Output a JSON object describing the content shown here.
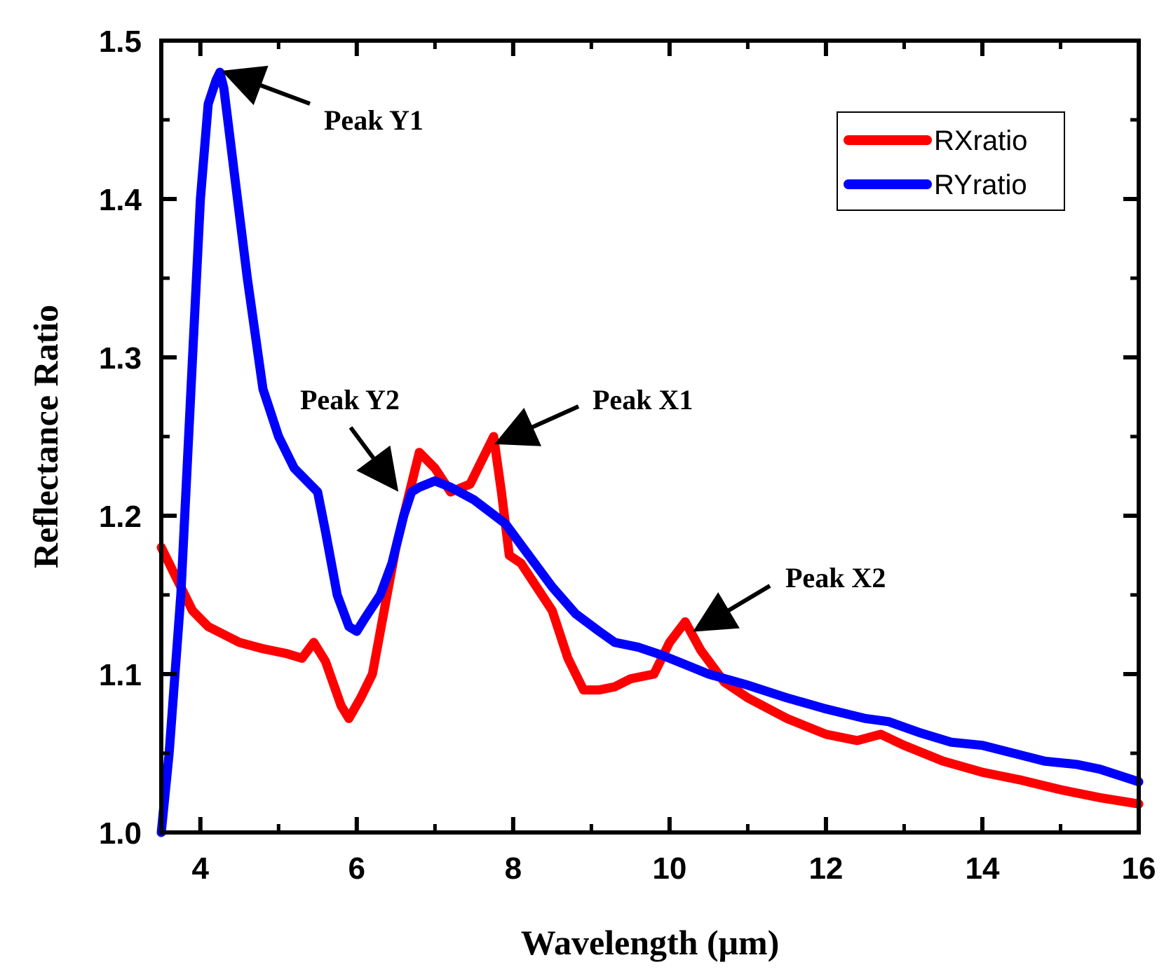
{
  "chart_data": {
    "type": "line",
    "title": "",
    "xlabel": "Wavelength (μm)",
    "ylabel": "Reflectance Ratio",
    "xlim": [
      3.5,
      16
    ],
    "ylim": [
      1.0,
      1.5
    ],
    "xticks": [
      4,
      6,
      8,
      10,
      12,
      14,
      16
    ],
    "xtick_labels": [
      "4",
      "6",
      "8",
      "10",
      "12",
      "14",
      "16"
    ],
    "yticks": [
      1.0,
      1.1,
      1.2,
      1.3,
      1.4,
      1.5
    ],
    "ytick_labels": [
      "1.0",
      "1.1",
      "1.2",
      "1.3",
      "1.4",
      "1.5"
    ],
    "grid": false,
    "legend_position": "top-right",
    "series": [
      {
        "name": "RXratio",
        "color": "#ff0000",
        "x": [
          3.5,
          3.7,
          3.9,
          4.1,
          4.3,
          4.5,
          4.8,
          5.1,
          5.3,
          5.45,
          5.6,
          5.8,
          5.9,
          6.05,
          6.2,
          6.35,
          6.5,
          6.65,
          6.8,
          6.9,
          7.0,
          7.2,
          7.45,
          7.6,
          7.75,
          7.85,
          7.95,
          8.1,
          8.3,
          8.5,
          8.7,
          8.9,
          9.1,
          9.3,
          9.5,
          9.8,
          10.0,
          10.2,
          10.4,
          10.7,
          11.0,
          11.5,
          12.0,
          12.4,
          12.7,
          13.0,
          13.5,
          14.0,
          14.5,
          15.0,
          15.5,
          16.0
        ],
        "values": [
          1.18,
          1.16,
          1.14,
          1.13,
          1.125,
          1.12,
          1.116,
          1.113,
          1.11,
          1.12,
          1.108,
          1.08,
          1.072,
          1.085,
          1.1,
          1.14,
          1.18,
          1.21,
          1.24,
          1.235,
          1.23,
          1.215,
          1.22,
          1.235,
          1.25,
          1.215,
          1.175,
          1.17,
          1.155,
          1.14,
          1.11,
          1.09,
          1.09,
          1.092,
          1.097,
          1.1,
          1.12,
          1.133,
          1.115,
          1.095,
          1.085,
          1.072,
          1.062,
          1.058,
          1.062,
          1.055,
          1.045,
          1.038,
          1.033,
          1.027,
          1.022,
          1.018
        ]
      },
      {
        "name": "RYratio",
        "color": "#0000ff",
        "x": [
          3.5,
          3.6,
          3.75,
          3.9,
          4.0,
          4.1,
          4.2,
          4.25,
          4.3,
          4.35,
          4.45,
          4.6,
          4.8,
          5.0,
          5.2,
          5.4,
          5.5,
          5.6,
          5.75,
          5.9,
          6.0,
          6.1,
          6.3,
          6.45,
          6.6,
          6.7,
          6.8,
          6.9,
          7.0,
          7.2,
          7.5,
          7.9,
          8.2,
          8.5,
          8.8,
          9.1,
          9.3,
          9.6,
          9.9,
          10.2,
          10.5,
          11.0,
          11.5,
          12.0,
          12.5,
          12.8,
          13.2,
          13.6,
          14.0,
          14.4,
          14.8,
          15.2,
          15.5,
          16.0
        ],
        "values": [
          1.0,
          1.05,
          1.15,
          1.3,
          1.4,
          1.46,
          1.475,
          1.48,
          1.47,
          1.45,
          1.41,
          1.35,
          1.28,
          1.25,
          1.23,
          1.22,
          1.215,
          1.19,
          1.15,
          1.13,
          1.127,
          1.135,
          1.15,
          1.17,
          1.2,
          1.215,
          1.218,
          1.22,
          1.222,
          1.218,
          1.21,
          1.195,
          1.175,
          1.155,
          1.138,
          1.127,
          1.12,
          1.117,
          1.112,
          1.106,
          1.1,
          1.093,
          1.085,
          1.078,
          1.072,
          1.07,
          1.063,
          1.057,
          1.055,
          1.05,
          1.045,
          1.043,
          1.04,
          1.032
        ]
      }
    ],
    "annotations": [
      {
        "text": "Peak Y1",
        "x": 4.3,
        "y": 1.48
      },
      {
        "text": "Peak Y2",
        "x": 6.45,
        "y": 1.215
      },
      {
        "text": "Peak X1",
        "x": 7.75,
        "y": 1.25
      },
      {
        "text": "Peak X2",
        "x": 10.3,
        "y": 1.133
      }
    ]
  }
}
